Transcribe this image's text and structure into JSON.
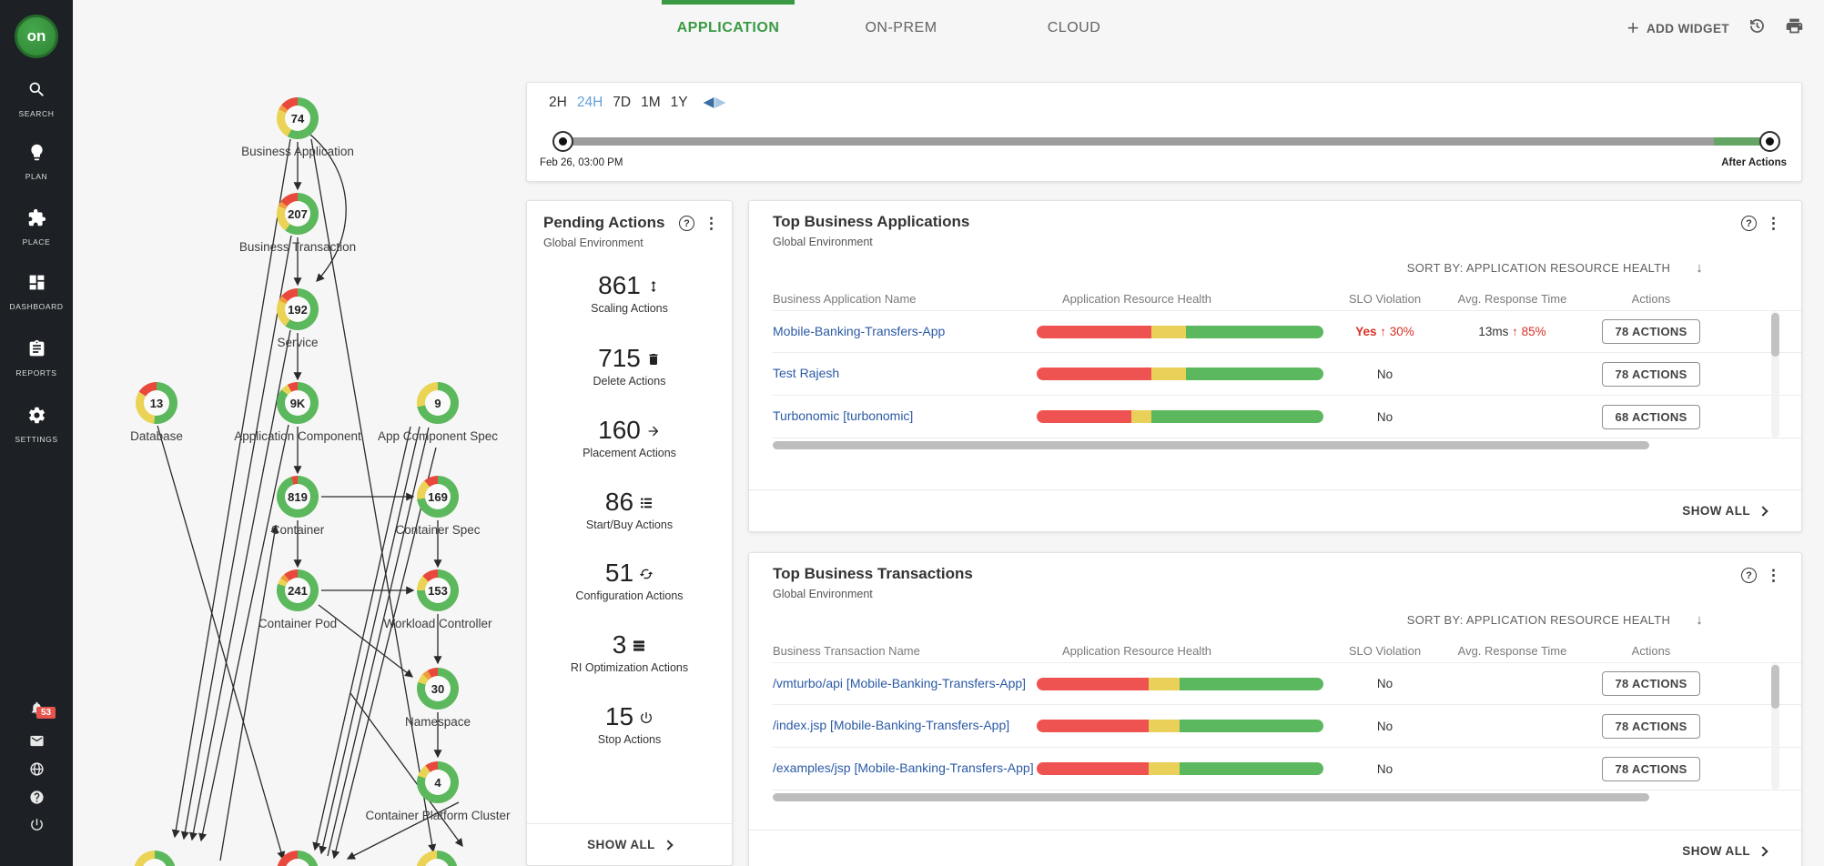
{
  "colors": {
    "brand_green": "#3a9a44",
    "donut_green": "#5cb85c",
    "donut_yellow": "#ead355",
    "donut_orange": "#f09b3e",
    "donut_red": "#e8493c",
    "bar_red": "#ee5351",
    "bar_yellow": "#e9d058",
    "bar_green": "#5cb85e",
    "link_blue": "#2b5aa5",
    "alert_red": "#d93025",
    "active_blue": "#64a0d8"
  },
  "sidebar": {
    "logo_text": "on",
    "items": [
      {
        "label": "SEARCH",
        "icon": "search-icon"
      },
      {
        "label": "PLAN",
        "icon": "plan-icon"
      },
      {
        "label": "PLACE",
        "icon": "place-icon"
      },
      {
        "label": "DASHBOARD",
        "icon": "dashboard-icon"
      },
      {
        "label": "REPORTS",
        "icon": "reports-icon"
      },
      {
        "label": "SETTINGS",
        "icon": "settings-icon"
      }
    ],
    "bottom_items": [
      {
        "icon": "notification-icon",
        "badge": "53"
      },
      {
        "icon": "mail-icon",
        "badge": ""
      },
      {
        "icon": "globe-icon",
        "badge": ""
      },
      {
        "icon": "help-icon",
        "badge": ""
      },
      {
        "icon": "power-icon",
        "badge": ""
      }
    ]
  },
  "header": {
    "tabs": [
      {
        "label": "APPLICATION",
        "active": true
      },
      {
        "label": "ON-PREM",
        "active": false
      },
      {
        "label": "CLOUD",
        "active": false
      }
    ],
    "add_widget_label": "ADD WIDGET"
  },
  "time_slider": {
    "ranges": [
      "2H",
      "24H",
      "7D",
      "1M",
      "1Y"
    ],
    "active_range": "24H",
    "start_label": "Feb 26, 03:00 PM",
    "end_label": "After Actions"
  },
  "supply_chain": {
    "nodes": [
      {
        "id": "business-application",
        "label": "Business Application",
        "value": "74",
        "segments": [
          {
            "color": "donut_green",
            "pct": 58
          },
          {
            "color": "donut_yellow",
            "pct": 24
          },
          {
            "color": "donut_orange",
            "pct": 4
          },
          {
            "color": "donut_red",
            "pct": 14
          }
        ]
      },
      {
        "id": "business-transaction",
        "label": "Business Transaction",
        "value": "207",
        "segments": [
          {
            "color": "donut_green",
            "pct": 60
          },
          {
            "color": "donut_yellow",
            "pct": 21
          },
          {
            "color": "donut_orange",
            "pct": 4
          },
          {
            "color": "donut_red",
            "pct": 15
          }
        ]
      },
      {
        "id": "service",
        "label": "Service",
        "value": "192",
        "segments": [
          {
            "color": "donut_green",
            "pct": 60
          },
          {
            "color": "donut_yellow",
            "pct": 22
          },
          {
            "color": "donut_orange",
            "pct": 4
          },
          {
            "color": "donut_red",
            "pct": 14
          }
        ]
      },
      {
        "id": "database",
        "label": "Database",
        "value": "13",
        "segments": [
          {
            "color": "donut_green",
            "pct": 52
          },
          {
            "color": "donut_yellow",
            "pct": 32
          },
          {
            "color": "donut_red",
            "pct": 16
          }
        ]
      },
      {
        "id": "application-component",
        "label": "Application Component",
        "value": "9K",
        "segments": [
          {
            "color": "donut_green",
            "pct": 86
          },
          {
            "color": "donut_yellow",
            "pct": 6
          },
          {
            "color": "donut_red",
            "pct": 8
          }
        ]
      },
      {
        "id": "app-component-spec",
        "label": "App Component Spec",
        "value": "9",
        "segments": [
          {
            "color": "donut_green",
            "pct": 72
          },
          {
            "color": "donut_yellow",
            "pct": 28
          }
        ]
      },
      {
        "id": "container",
        "label": "Container",
        "value": "819",
        "segments": [
          {
            "color": "donut_green",
            "pct": 95
          },
          {
            "color": "donut_red",
            "pct": 5
          }
        ]
      },
      {
        "id": "container-spec",
        "label": "Container Spec",
        "value": "169",
        "segments": [
          {
            "color": "donut_green",
            "pct": 73
          },
          {
            "color": "donut_yellow",
            "pct": 16
          },
          {
            "color": "donut_red",
            "pct": 11
          }
        ]
      },
      {
        "id": "container-pod",
        "label": "Container Pod",
        "value": "241",
        "segments": [
          {
            "color": "donut_green",
            "pct": 80
          },
          {
            "color": "donut_yellow",
            "pct": 5
          },
          {
            "color": "donut_orange",
            "pct": 4
          },
          {
            "color": "donut_red",
            "pct": 11
          }
        ]
      },
      {
        "id": "workload-controller",
        "label": "Workload Controller",
        "value": "153",
        "segments": [
          {
            "color": "donut_green",
            "pct": 75
          },
          {
            "color": "donut_yellow",
            "pct": 12
          },
          {
            "color": "donut_red",
            "pct": 13
          }
        ]
      },
      {
        "id": "namespace",
        "label": "Namespace",
        "value": "30",
        "segments": [
          {
            "color": "donut_green",
            "pct": 80
          },
          {
            "color": "donut_yellow",
            "pct": 7
          },
          {
            "color": "donut_orange",
            "pct": 5
          },
          {
            "color": "donut_red",
            "pct": 8
          }
        ]
      },
      {
        "id": "container-platform-cluster",
        "label": "Container Platform Cluster",
        "value": "4",
        "segments": [
          {
            "color": "donut_green",
            "pct": 80
          },
          {
            "color": "donut_yellow",
            "pct": 10
          },
          {
            "color": "donut_red",
            "pct": 10
          }
        ]
      },
      {
        "id": "partial-node-1",
        "label": "",
        "value": "",
        "segments": [
          {
            "color": "donut_green",
            "pct": 68
          },
          {
            "color": "donut_yellow",
            "pct": 32
          }
        ]
      },
      {
        "id": "partial-node-2",
        "label": "",
        "value": "",
        "segments": [
          {
            "color": "donut_green",
            "pct": 58
          },
          {
            "color": "donut_red",
            "pct": 42
          }
        ]
      },
      {
        "id": "partial-node-3",
        "label": "",
        "value": "",
        "segments": [
          {
            "color": "donut_green",
            "pct": 65
          },
          {
            "color": "donut_yellow",
            "pct": 35
          }
        ]
      }
    ]
  },
  "pending_actions": {
    "title": "Pending Actions",
    "subtitle": "Global Environment",
    "stats": [
      {
        "value": "861",
        "label": "Scaling Actions",
        "icon": "scaling-icon"
      },
      {
        "value": "715",
        "label": "Delete Actions",
        "icon": "delete-icon"
      },
      {
        "value": "160",
        "label": "Placement Actions",
        "icon": "placement-icon"
      },
      {
        "value": "86",
        "label": "Start/Buy Actions",
        "icon": "start-buy-icon"
      },
      {
        "value": "51",
        "label": "Configuration Actions",
        "icon": "configuration-icon"
      },
      {
        "value": "3",
        "label": "RI Optimization Actions",
        "icon": "ri-optimization-icon"
      },
      {
        "value": "15",
        "label": "Stop Actions",
        "icon": "stop-icon"
      }
    ],
    "show_all": "SHOW ALL"
  },
  "top_business_applications": {
    "title": "Top Business Applications",
    "subtitle": "Global Environment",
    "sort_by": "SORT BY: APPLICATION RESOURCE HEALTH",
    "columns": [
      "Business Application Name",
      "Application Resource Health",
      "SLO Violation",
      "Avg. Response Time",
      "Actions"
    ],
    "rows": [
      {
        "name": "Mobile-Banking-Transfers-App",
        "health": {
          "red": 40,
          "yellow": 12,
          "green": 48
        },
        "slo": "Yes",
        "slo_delta": "30%",
        "slo_violation": true,
        "response_time": "13ms",
        "response_delta": "85%",
        "actions": "78 ACTIONS"
      },
      {
        "name": "Test Rajesh",
        "health": {
          "red": 40,
          "yellow": 12,
          "green": 48
        },
        "slo": "No",
        "slo_delta": "",
        "slo_violation": false,
        "response_time": "",
        "response_delta": "",
        "actions": "78 ACTIONS"
      },
      {
        "name": "Turbonomic [turbonomic]",
        "health": {
          "red": 33,
          "yellow": 7,
          "green": 60
        },
        "slo": "No",
        "slo_delta": "",
        "slo_violation": false,
        "response_time": "",
        "response_delta": "",
        "actions": "68 ACTIONS"
      }
    ],
    "show_all": "SHOW ALL"
  },
  "top_business_transactions": {
    "title": "Top Business Transactions",
    "subtitle": "Global Environment",
    "sort_by": "SORT BY: APPLICATION RESOURCE HEALTH",
    "columns": [
      "Business Transaction Name",
      "Application Resource Health",
      "SLO Violation",
      "Avg. Response Time",
      "Actions"
    ],
    "rows": [
      {
        "name": "/vmturbo/api [Mobile-Banking-Transfers-App]",
        "health": {
          "red": 39,
          "yellow": 11,
          "green": 50
        },
        "slo": "No",
        "slo_delta": "",
        "slo_violation": false,
        "response_time": "",
        "response_delta": "",
        "actions": "78 ACTIONS"
      },
      {
        "name": "/index.jsp [Mobile-Banking-Transfers-App]",
        "health": {
          "red": 39,
          "yellow": 11,
          "green": 50
        },
        "slo": "No",
        "slo_delta": "",
        "slo_violation": false,
        "response_time": "",
        "response_delta": "",
        "actions": "78 ACTIONS"
      },
      {
        "name": "/examples/jsp [Mobile-Banking-Transfers-App]",
        "health": {
          "red": 39,
          "yellow": 11,
          "green": 50
        },
        "slo": "No",
        "slo_delta": "",
        "slo_violation": false,
        "response_time": "",
        "response_delta": "",
        "actions": "78 ACTIONS"
      }
    ],
    "show_all": "SHOW ALL"
  }
}
